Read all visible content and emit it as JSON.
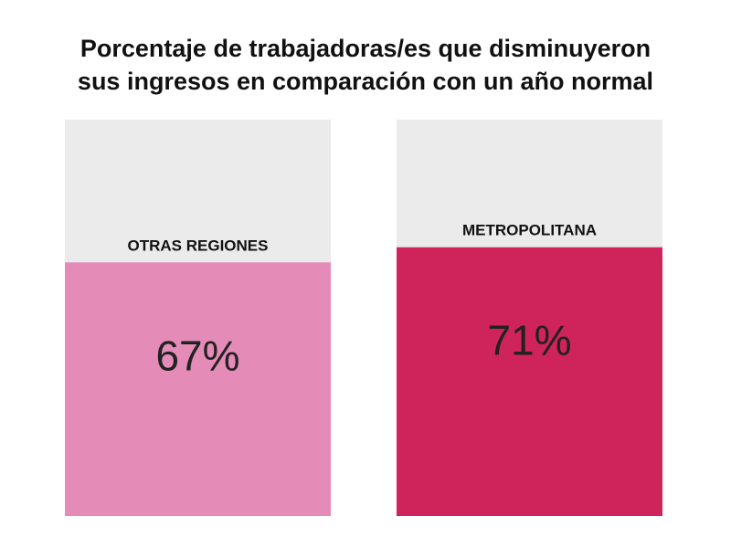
{
  "chart_data": {
    "type": "bar",
    "title_lines": [
      "Porcentaje de trabajadoras/es que disminuyeron",
      "sus ingresos en comparación con un año normal"
    ],
    "categories": [
      "OTRAS REGIONES",
      "METROPOLITANA"
    ],
    "values": [
      67,
      71
    ],
    "value_labels": [
      "67%",
      "71%"
    ],
    "ylim": [
      0,
      100
    ],
    "colors": [
      "#e58bb7",
      "#cf245b"
    ],
    "background_color": "#ebebeb"
  }
}
